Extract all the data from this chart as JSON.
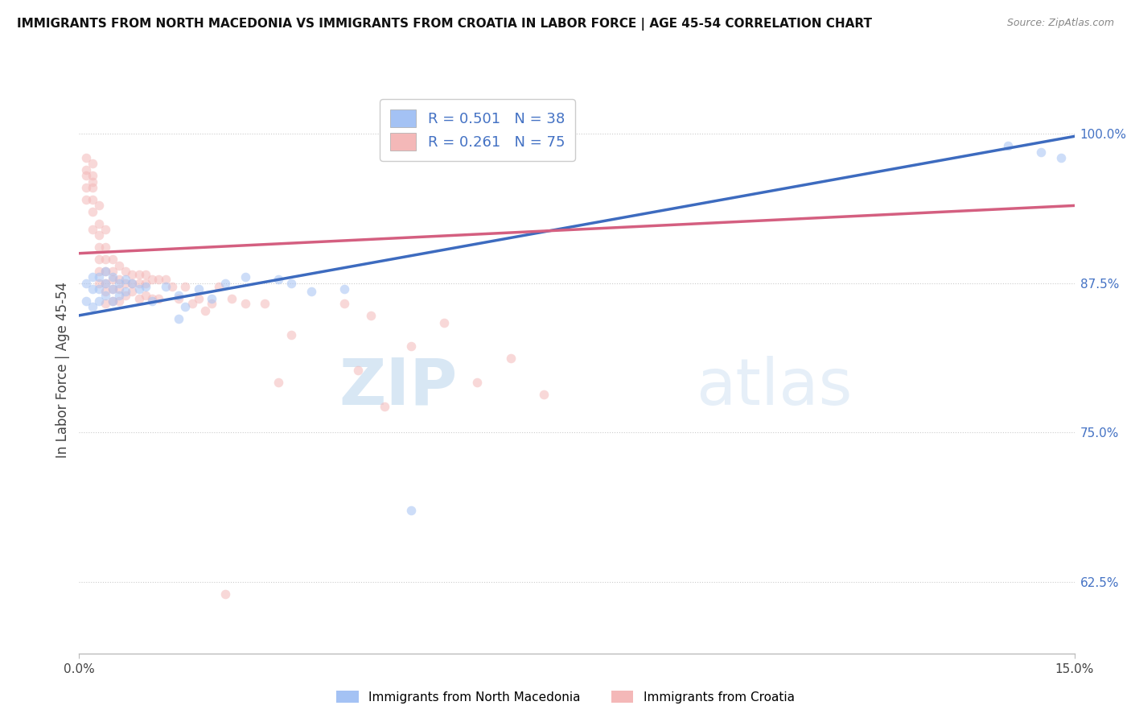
{
  "title": "IMMIGRANTS FROM NORTH MACEDONIA VS IMMIGRANTS FROM CROATIA IN LABOR FORCE | AGE 45-54 CORRELATION CHART",
  "source": "Source: ZipAtlas.com",
  "ylabel": "In Labor Force | Age 45-54",
  "legend_blue_r": "R = 0.501",
  "legend_blue_n": "N = 38",
  "legend_pink_r": "R = 0.261",
  "legend_pink_n": "N = 75",
  "blue_color": "#a4c2f4",
  "pink_color": "#f4b8b8",
  "blue_line_color": "#3d6bbf",
  "pink_line_color": "#d45f80",
  "watermark_zip": "ZIP",
  "watermark_atlas": "atlas",
  "xmin": 0.0,
  "xmax": 0.15,
  "ymin": 0.565,
  "ymax": 1.04,
  "blue_scatter_x": [
    0.001,
    0.001,
    0.002,
    0.002,
    0.002,
    0.003,
    0.003,
    0.003,
    0.004,
    0.004,
    0.004,
    0.005,
    0.005,
    0.005,
    0.006,
    0.006,
    0.007,
    0.007,
    0.008,
    0.009,
    0.01,
    0.011,
    0.013,
    0.015,
    0.015,
    0.016,
    0.018,
    0.02,
    0.022,
    0.025,
    0.03,
    0.032,
    0.035,
    0.04,
    0.05,
    0.14,
    0.145,
    0.148
  ],
  "blue_scatter_y": [
    0.875,
    0.86,
    0.88,
    0.87,
    0.855,
    0.88,
    0.87,
    0.86,
    0.885,
    0.875,
    0.865,
    0.88,
    0.87,
    0.86,
    0.875,
    0.865,
    0.878,
    0.868,
    0.875,
    0.87,
    0.872,
    0.86,
    0.872,
    0.865,
    0.845,
    0.855,
    0.87,
    0.862,
    0.875,
    0.88,
    0.878,
    0.875,
    0.868,
    0.87,
    0.685,
    0.99,
    0.985,
    0.98
  ],
  "pink_scatter_x": [
    0.001,
    0.001,
    0.001,
    0.001,
    0.001,
    0.002,
    0.002,
    0.002,
    0.002,
    0.002,
    0.002,
    0.003,
    0.003,
    0.003,
    0.003,
    0.003,
    0.003,
    0.004,
    0.004,
    0.004,
    0.004,
    0.004,
    0.004,
    0.005,
    0.005,
    0.005,
    0.005,
    0.005,
    0.006,
    0.006,
    0.006,
    0.006,
    0.007,
    0.007,
    0.007,
    0.008,
    0.008,
    0.008,
    0.009,
    0.009,
    0.009,
    0.01,
    0.01,
    0.01,
    0.011,
    0.011,
    0.012,
    0.012,
    0.013,
    0.014,
    0.015,
    0.016,
    0.017,
    0.018,
    0.019,
    0.02,
    0.021,
    0.023,
    0.025,
    0.028,
    0.03,
    0.032,
    0.04,
    0.042,
    0.044,
    0.046,
    0.05,
    0.055,
    0.06,
    0.065,
    0.07,
    0.002,
    0.003,
    0.004,
    0.022
  ],
  "pink_scatter_y": [
    0.98,
    0.97,
    0.965,
    0.955,
    0.945,
    0.975,
    0.965,
    0.955,
    0.945,
    0.935,
    0.92,
    0.925,
    0.915,
    0.905,
    0.895,
    0.885,
    0.875,
    0.905,
    0.895,
    0.885,
    0.875,
    0.868,
    0.858,
    0.895,
    0.885,
    0.878,
    0.87,
    0.86,
    0.89,
    0.878,
    0.87,
    0.86,
    0.885,
    0.875,
    0.865,
    0.882,
    0.875,
    0.868,
    0.882,
    0.875,
    0.862,
    0.882,
    0.875,
    0.865,
    0.878,
    0.862,
    0.878,
    0.862,
    0.878,
    0.872,
    0.862,
    0.872,
    0.858,
    0.862,
    0.852,
    0.858,
    0.872,
    0.862,
    0.858,
    0.858,
    0.792,
    0.832,
    0.858,
    0.802,
    0.848,
    0.772,
    0.822,
    0.842,
    0.792,
    0.812,
    0.782,
    0.96,
    0.94,
    0.92,
    0.615
  ],
  "blue_trend_x": [
    0.0,
    0.15
  ],
  "blue_trend_y": [
    0.848,
    0.998
  ],
  "pink_trend_x": [
    0.0,
    0.15
  ],
  "pink_trend_y": [
    0.9,
    0.94
  ],
  "dot_size_blue": 70,
  "dot_size_pink": 70,
  "dot_alpha": 0.55,
  "right_tick_color": "#4472c4",
  "grid_color": "#cccccc",
  "grid_style": "dotted"
}
